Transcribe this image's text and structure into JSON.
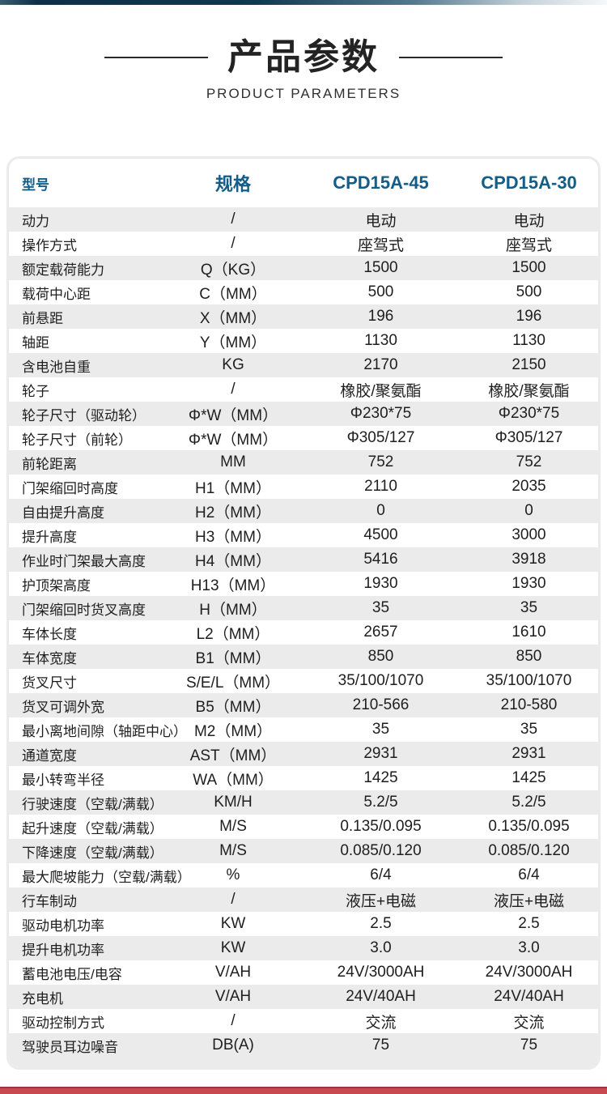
{
  "header": {
    "title": "产品参数",
    "subtitle": "PRODUCT PARAMETERS"
  },
  "table": {
    "headers": [
      "型号",
      "规格",
      "CPD15A-45",
      "CPD15A-30"
    ],
    "rows": [
      [
        "动力",
        "/",
        "电动",
        "电动"
      ],
      [
        "操作方式",
        "/",
        "座驾式",
        "座驾式"
      ],
      [
        "额定载荷能力",
        "Q（KG）",
        "1500",
        "1500"
      ],
      [
        "载荷中心距",
        "C（MM）",
        "500",
        "500"
      ],
      [
        "前悬距",
        "X（MM）",
        "196",
        "196"
      ],
      [
        "轴距",
        "Y（MM）",
        "1130",
        "1130"
      ],
      [
        "含电池自重",
        "KG",
        "2170",
        "2150"
      ],
      [
        "轮子",
        "/",
        "橡胶/聚氨酯",
        "橡胶/聚氨酯"
      ],
      [
        "轮子尺寸（驱动轮）",
        "Φ*W（MM）",
        "Φ230*75",
        "Φ230*75"
      ],
      [
        "轮子尺寸（前轮）",
        "Φ*W（MM）",
        "Φ305/127",
        "Φ305/127"
      ],
      [
        "前轮距离",
        "MM",
        "752",
        "752"
      ],
      [
        "门架缩回时高度",
        "H1（MM）",
        "2110",
        "2035"
      ],
      [
        "自由提升高度",
        "H2（MM）",
        "0",
        "0"
      ],
      [
        "提升高度",
        "H3（MM）",
        "4500",
        "3000"
      ],
      [
        "作业时门架最大高度",
        "H4（MM）",
        "5416",
        "3918"
      ],
      [
        "护顶架高度",
        "H13（MM）",
        "1930",
        "1930"
      ],
      [
        "门架缩回时货叉高度",
        "H（MM）",
        "35",
        "35"
      ],
      [
        "车体长度",
        "L2（MM）",
        "2657",
        "1610"
      ],
      [
        "车体宽度",
        "B1（MM）",
        "850",
        "850"
      ],
      [
        "货叉尺寸",
        "S/E/L（MM）",
        "35/100/1070",
        "35/100/1070"
      ],
      [
        "货叉可调外宽",
        "B5（MM）",
        "210-566",
        "210-580"
      ],
      [
        "最小离地间隙（轴距中心）",
        "M2（MM）",
        "35",
        "35"
      ],
      [
        "通道宽度",
        "AST（MM）",
        "2931",
        "2931"
      ],
      [
        "最小转弯半径",
        "WA（MM）",
        "1425",
        "1425"
      ],
      [
        "行驶速度（空载/满载）",
        "KM/H",
        "5.2/5",
        "5.2/5"
      ],
      [
        "起升速度（空载/满载）",
        "M/S",
        "0.135/0.095",
        "0.135/0.095"
      ],
      [
        "下降速度（空载/满载）",
        "M/S",
        "0.085/0.120",
        "0.085/0.120"
      ],
      [
        "最大爬坡能力（空载/满载）",
        "%",
        "6/4",
        "6/4"
      ],
      [
        "行车制动",
        "/",
        "液压+电磁",
        "液压+电磁"
      ],
      [
        "驱动电机功率",
        "KW",
        "2.5",
        "2.5"
      ],
      [
        "提升电机功率",
        "KW",
        "3.0",
        "3.0"
      ],
      [
        "蓄电池电压/电容",
        "V/AH",
        "24V/3000AH",
        "24V/3000AH"
      ],
      [
        "充电机",
        "V/AH",
        "24V/40AH",
        "24V/40AH"
      ],
      [
        "驱动控制方式",
        "/",
        "交流",
        "交流"
      ],
      [
        "驾驶员耳边噪音",
        "DB(A)",
        "75",
        "75"
      ]
    ]
  },
  "colors": {
    "header_text": "#135d88",
    "row_stripe": "#ebebeb",
    "top_bar": "#123750",
    "bottom_bar": "#c84a50",
    "title_text": "#232323"
  }
}
